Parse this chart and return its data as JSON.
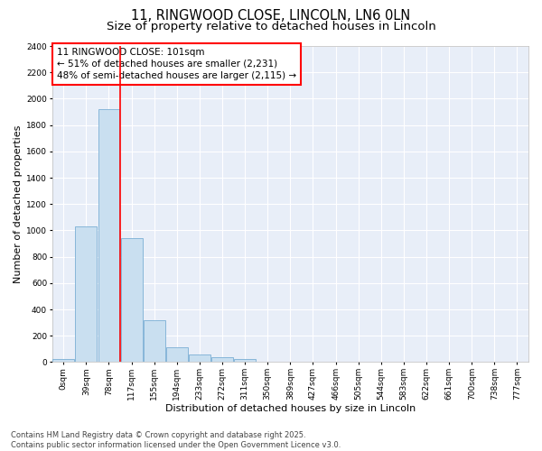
{
  "title1": "11, RINGWOOD CLOSE, LINCOLN, LN6 0LN",
  "title2": "Size of property relative to detached houses in Lincoln",
  "xlabel": "Distribution of detached houses by size in Lincoln",
  "ylabel": "Number of detached properties",
  "bar_color": "#c9dff0",
  "bar_edge_color": "#7aafd4",
  "background_color": "#e8eef8",
  "grid_color": "#ffffff",
  "categories": [
    "0sqm",
    "39sqm",
    "78sqm",
    "117sqm",
    "155sqm",
    "194sqm",
    "233sqm",
    "272sqm",
    "311sqm",
    "350sqm",
    "389sqm",
    "427sqm",
    "466sqm",
    "505sqm",
    "544sqm",
    "583sqm",
    "622sqm",
    "661sqm",
    "700sqm",
    "738sqm",
    "777sqm"
  ],
  "values": [
    20,
    1030,
    1920,
    940,
    320,
    110,
    55,
    40,
    20,
    5,
    2,
    1,
    0,
    0,
    0,
    0,
    0,
    0,
    0,
    0,
    0
  ],
  "ylim": [
    0,
    2400
  ],
  "yticks": [
    0,
    200,
    400,
    600,
    800,
    1000,
    1200,
    1400,
    1600,
    1800,
    2000,
    2200,
    2400
  ],
  "vline_x": 2.5,
  "annotation_text": "11 RINGWOOD CLOSE: 101sqm\n← 51% of detached houses are smaller (2,231)\n48% of semi-detached houses are larger (2,115) →",
  "footer_text": "Contains HM Land Registry data © Crown copyright and database right 2025.\nContains public sector information licensed under the Open Government Licence v3.0.",
  "title1_fontsize": 10.5,
  "title2_fontsize": 9.5,
  "axis_label_fontsize": 8,
  "tick_fontsize": 6.5,
  "annotation_fontsize": 7.5,
  "footer_fontsize": 6
}
